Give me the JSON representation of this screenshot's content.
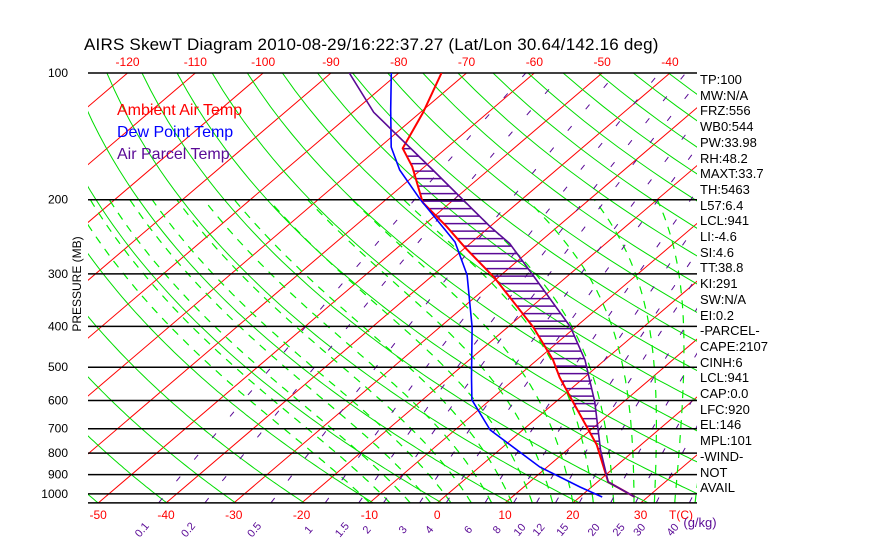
{
  "chart_data": {
    "type": "line",
    "subtype": "skew-t log-p",
    "title": "AIRS SkewT Diagram 2010-08-29/16:22:37.27 (Lat/Lon 30.64/142.16 deg)",
    "ylabel": "PRESSURE (MB)",
    "xlabel": "T(C)",
    "ylim": [
      1050,
      100
    ],
    "pressure_ticks": [
      "100",
      "200",
      "300",
      "400",
      "500",
      "600",
      "700",
      "800",
      "900",
      "1000"
    ],
    "top_temp_ticks": [
      "-120",
      "-110",
      "-100",
      "-90",
      "-80",
      "-70",
      "-60",
      "-50",
      "-40"
    ],
    "bottom_temp_ticks": [
      "-50",
      "-40",
      "-30",
      "-20",
      "-10",
      "0",
      "10",
      "20",
      "30"
    ],
    "mixing_ratio_ticks": [
      "0.1",
      "0.2",
      "0.5",
      "1",
      "1.5",
      "2",
      "3",
      "4",
      "6",
      "8",
      "10",
      "12",
      "15",
      "20",
      "25",
      "30",
      "40"
    ],
    "mixing_ratio_unit": "(g/kg)",
    "legend": [
      {
        "label": "Ambient Air Temp",
        "color": "#ff0000"
      },
      {
        "label": "Dew Point Temp",
        "color": "#0000ff"
      },
      {
        "label": "Air Parcel Temp",
        "color": "#5a0a96"
      }
    ],
    "series": [
      {
        "name": "Ambient Air Temp",
        "color": "#ff0000",
        "pressure": [
          1017,
          937,
          765,
          605,
          528,
          481,
          401,
          307,
          260,
          232,
          203,
          167,
          151,
          124,
          100
        ],
        "temperature": [
          28.1,
          21.6,
          13.5,
          2.6,
          -3.7,
          -7.6,
          -16.3,
          -30.4,
          -40.0,
          -46.3,
          -54.1,
          -61.8,
          -66.4,
          -69.6,
          -73.7
        ]
      },
      {
        "name": "Dew Point Temp",
        "color": "#0000ff",
        "pressure": [
          1017,
          963,
          863,
          705,
          598,
          528,
          401,
          302,
          252,
          233,
          200,
          170,
          150,
          122,
          100
        ],
        "temperature": [
          23.3,
          18.3,
          8.9,
          -4.8,
          -12.7,
          -16.7,
          -25.3,
          -35.0,
          -42.5,
          -46.7,
          -54.9,
          -63.1,
          -68.3,
          -74.9,
          -81.1
        ]
      },
      {
        "name": "Air Parcel Temp",
        "color": "#5a0a96",
        "pressure": [
          1017,
          937,
          786,
          605,
          481,
          401,
          302,
          254,
          232,
          170,
          124,
          100
        ],
        "temperature": [
          28.1,
          21.6,
          14.9,
          5.8,
          -2.9,
          -10.8,
          -25.3,
          -34.2,
          -39.9,
          -58.2,
          -76.9,
          -87.3
        ]
      }
    ],
    "cape_hatch_range_mb": [
      920,
      146
    ]
  },
  "stats": [
    "TP:100",
    "MW:N/A",
    "FRZ:556",
    "WB0:544",
    "PW:33.98",
    "RH:48.2",
    "MAXT:33.7",
    "TH:5463",
    "L57:6.4",
    "LCL:941",
    "LI:-4.6",
    "SI:4.6",
    "TT:38.8",
    "KI:291",
    "SW:N/A",
    "EI:0.2",
    "-PARCEL-",
    "CAPE:2107",
    "CINH:6",
    "LCL:941",
    "CAP:0.0",
    "LFC:920",
    "EL:146",
    "MPL:101",
    "-WIND-",
    "NOT",
    "AVAIL"
  ],
  "colors": {
    "isotherm": "#ff0000",
    "dry_adiabat": "#00dd00",
    "moist_adiabat": "#00ee00",
    "mixing_ratio": "#5a0a96",
    "hatch": "#5a0a96"
  }
}
